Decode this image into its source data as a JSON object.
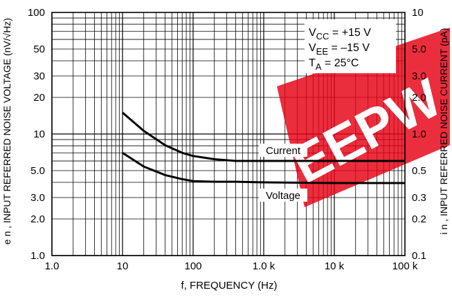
{
  "chart_data": {
    "type": "line",
    "xlabel": "f, FREQUENCY (Hz)",
    "ylabel_left": "e n , INPUT REFERRED NOISE VOLTAGE (nV/√Hz)",
    "ylabel_right": "i n , INPUT REFERRED NOISE CURRENT (pA)",
    "x_scale": "log",
    "y_scale": "log",
    "xlim": [
      1,
      100000
    ],
    "ylim_left": [
      1,
      100
    ],
    "ylim_right": [
      0.1,
      10
    ],
    "grid": true,
    "x_tick_labels": [
      {
        "value": 1,
        "label": "1.0"
      },
      {
        "value": 10,
        "label": "10"
      },
      {
        "value": 100,
        "label": "100"
      },
      {
        "value": 1000,
        "label": "1.0 k"
      },
      {
        "value": 10000,
        "label": "10 k"
      },
      {
        "value": 100000,
        "label": "100 k"
      }
    ],
    "y_tick_labels_left": [
      {
        "value": 1,
        "label": "1.0"
      },
      {
        "value": 2,
        "label": "2.0"
      },
      {
        "value": 3,
        "label": "3.0"
      },
      {
        "value": 5,
        "label": "5.0"
      },
      {
        "value": 10,
        "label": "10"
      },
      {
        "value": 20,
        "label": "20"
      },
      {
        "value": 30,
        "label": "30"
      },
      {
        "value": 50,
        "label": "50"
      },
      {
        "value": 100,
        "label": "100"
      }
    ],
    "y_tick_labels_right": [
      {
        "value": 0.1,
        "label": "0.1"
      },
      {
        "value": 0.2,
        "label": "0.2"
      },
      {
        "value": 0.3,
        "label": "0.3"
      },
      {
        "value": 0.5,
        "label": "0.5"
      },
      {
        "value": 1,
        "label": "1.0"
      },
      {
        "value": 2,
        "label": "2.0"
      },
      {
        "value": 3,
        "label": "3.0"
      },
      {
        "value": 5,
        "label": "5.0"
      },
      {
        "value": 10,
        "label": "10"
      }
    ],
    "series": [
      {
        "name": "Current",
        "axis": "right",
        "x": [
          10,
          20,
          40,
          70,
          100,
          200,
          400,
          1000,
          10000,
          100000
        ],
        "y": [
          1.5,
          1.06,
          0.81,
          0.7,
          0.66,
          0.62,
          0.6,
          0.6,
          0.6,
          0.6
        ]
      },
      {
        "name": "Voltage",
        "axis": "left",
        "x": [
          10,
          20,
          40,
          70,
          100,
          200,
          400,
          1000,
          10000,
          100000
        ],
        "y": [
          7,
          5.4,
          4.6,
          4.25,
          4.1,
          4.05,
          4.05,
          4.0,
          3.95,
          3.95
        ]
      }
    ],
    "annotations": [
      {
        "text": "V",
        "sub": "CC",
        "rest": " = +15 V"
      },
      {
        "text": "V",
        "sub": "EE",
        "rest": " = –15 V"
      },
      {
        "text": "T",
        "sub": "A",
        "rest": " = 25°C"
      }
    ],
    "watermark": "EEPW"
  }
}
